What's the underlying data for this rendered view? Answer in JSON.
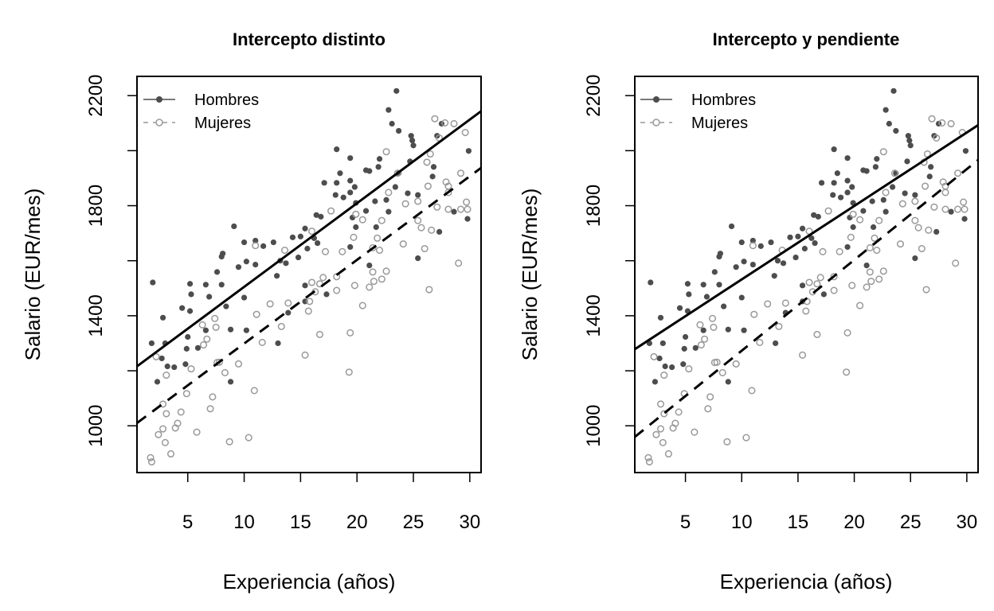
{
  "chart_data": [
    {
      "type": "scatter",
      "title": "Intercepto distinto",
      "xlabel": "Experiencia (años)",
      "ylabel": "Salario (EUR/mes)",
      "xlim": [
        0.5,
        31
      ],
      "ylim": [
        830,
        2270
      ],
      "xticks": [
        5,
        10,
        15,
        20,
        25,
        30
      ],
      "yticks": [
        1000,
        1200,
        1400,
        1600,
        1800,
        2000,
        2200
      ],
      "ytick_labels": [
        "1000",
        "",
        "1400",
        "",
        "1800",
        "",
        "2200"
      ],
      "grid": false,
      "legend": {
        "position": "top-left",
        "entries": [
          "Hombres",
          "Mujeres"
        ]
      },
      "fits": [
        {
          "series": "Hombres",
          "intercept": 1201,
          "slope": 30.4,
          "style": "solid"
        },
        {
          "series": "Mujeres",
          "intercept": 995,
          "slope": 30.4,
          "style": "dashed"
        }
      ]
    },
    {
      "type": "scatter",
      "title": "Intercepto y pendiente",
      "xlabel": "Experiencia (años)",
      "ylabel": "Salario (EUR/mes)",
      "xlim": [
        0.5,
        31
      ],
      "ylim": [
        830,
        2270
      ],
      "xticks": [
        5,
        10,
        15,
        20,
        25,
        30
      ],
      "yticks": [
        1000,
        1200,
        1400,
        1600,
        1800,
        2000,
        2200
      ],
      "ytick_labels": [
        "1000",
        "",
        "1400",
        "",
        "1800",
        "",
        "2200"
      ],
      "grid": false,
      "legend": {
        "position": "top-left",
        "entries": [
          "Hombres",
          "Mujeres"
        ]
      },
      "fits": [
        {
          "series": "Hombres",
          "intercept": 1265,
          "slope": 26.7,
          "style": "solid"
        },
        {
          "series": "Mujeres",
          "intercept": 943,
          "slope": 33.0,
          "style": "dashed"
        }
      ]
    }
  ],
  "series": [
    {
      "name": "Hombres",
      "marker": "filled-circle",
      "color": "#4d4d4d",
      "points": [
        [
          1.9,
          1521
        ],
        [
          2.8,
          1393
        ],
        [
          1.8,
          1300
        ],
        [
          3.0,
          1300
        ],
        [
          2.7,
          1245
        ],
        [
          2.3,
          1160
        ],
        [
          3.2,
          1216
        ],
        [
          3.8,
          1213
        ],
        [
          4.5,
          1428
        ],
        [
          5.2,
          1516
        ],
        [
          5.3,
          1478
        ],
        [
          5.2,
          1417
        ],
        [
          5.0,
          1323
        ],
        [
          4.9,
          1280
        ],
        [
          4.8,
          1224
        ],
        [
          5.9,
          1283
        ],
        [
          6.6,
          1513
        ],
        [
          6.9,
          1469
        ],
        [
          6.6,
          1347
        ],
        [
          7.6,
          1559
        ],
        [
          8.0,
          1615
        ],
        [
          8.1,
          1626
        ],
        [
          8.0,
          1513
        ],
        [
          8.4,
          1434
        ],
        [
          8.8,
          1350
        ],
        [
          8.8,
          1160
        ],
        [
          9.1,
          1725
        ],
        [
          9.5,
          1577
        ],
        [
          10.0,
          1667
        ],
        [
          10.2,
          1597
        ],
        [
          10.0,
          1466
        ],
        [
          10.2,
          1347
        ],
        [
          11.0,
          1673
        ],
        [
          11.0,
          1586
        ],
        [
          11.7,
          1653
        ],
        [
          12.6,
          1667
        ],
        [
          12.9,
          1545
        ],
        [
          13.0,
          1300
        ],
        [
          13.2,
          1600
        ],
        [
          13.7,
          1591
        ],
        [
          13.9,
          1411
        ],
        [
          14.3,
          1685
        ],
        [
          15.0,
          1688
        ],
        [
          14.8,
          1612
        ],
        [
          15.4,
          1717
        ],
        [
          15.4,
          1510
        ],
        [
          15.4,
          1452
        ],
        [
          15.6,
          1644
        ],
        [
          16.2,
          1682
        ],
        [
          16.5,
          1664
        ],
        [
          16.4,
          1766
        ],
        [
          16.8,
          1760
        ],
        [
          17.1,
          1883
        ],
        [
          17.3,
          1478
        ],
        [
          18.1,
          1839
        ],
        [
          18.2,
          1883
        ],
        [
          18.2,
          2005
        ],
        [
          18.5,
          1918
        ],
        [
          18.8,
          1830
        ],
        [
          19.4,
          1973
        ],
        [
          19.4,
          1891
        ],
        [
          19.4,
          1848
        ],
        [
          19.6,
          1757
        ],
        [
          19.8,
          1868
        ],
        [
          19.9,
          1810
        ],
        [
          19.9,
          1722
        ],
        [
          19.4,
          1650
        ],
        [
          20.8,
          1781
        ],
        [
          20.8,
          1929
        ],
        [
          21.1,
          1926
        ],
        [
          21.1,
          1583
        ],
        [
          21.6,
          1816
        ],
        [
          21.7,
          1722
        ],
        [
          21.9,
          1941
        ],
        [
          22.0,
          1970
        ],
        [
          22.6,
          1821
        ],
        [
          22.8,
          1778
        ],
        [
          22.8,
          2148
        ],
        [
          23.1,
          2098
        ],
        [
          23.4,
          1868
        ],
        [
          23.5,
          2217
        ],
        [
          23.7,
          2072
        ],
        [
          23.7,
          1918
        ],
        [
          24.5,
          1845
        ],
        [
          24.7,
          1961
        ],
        [
          24.8,
          2054
        ],
        [
          24.9,
          2037
        ],
        [
          25.0,
          2019
        ],
        [
          25.4,
          1839
        ],
        [
          25.4,
          1609
        ],
        [
          26.7,
          1906
        ],
        [
          26.8,
          1941
        ],
        [
          27.1,
          2054
        ],
        [
          27.5,
          2098
        ],
        [
          27.3,
          1705
        ],
        [
          28.6,
          1778
        ],
        [
          29.8,
          1752
        ],
        [
          29.9,
          1999
        ]
      ]
    },
    {
      "name": "Mujeres",
      "marker": "open-circle",
      "color": "#999999",
      "points": [
        [
          1.7,
          884
        ],
        [
          1.8,
          869
        ],
        [
          2.4,
          968
        ],
        [
          2.2,
          1251
        ],
        [
          2.8,
          1079
        ],
        [
          2.8,
          989
        ],
        [
          3.1,
          1044
        ],
        [
          3.0,
          939
        ],
        [
          3.5,
          898
        ],
        [
          3.1,
          1184
        ],
        [
          3.9,
          992
        ],
        [
          4.1,
          1009
        ],
        [
          4.4,
          1050
        ],
        [
          4.9,
          1117
        ],
        [
          5.3,
          1207
        ],
        [
          5.8,
          977
        ],
        [
          6.3,
          1367
        ],
        [
          6.4,
          1294
        ],
        [
          6.7,
          1315
        ],
        [
          7.0,
          1062
        ],
        [
          7.2,
          1105
        ],
        [
          7.4,
          1390
        ],
        [
          7.5,
          1358
        ],
        [
          7.6,
          1230
        ],
        [
          7.8,
          1231
        ],
        [
          8.3,
          1193
        ],
        [
          8.7,
          942
        ],
        [
          9.5,
          1225
        ],
        [
          10.4,
          957
        ],
        [
          10.9,
          1128
        ],
        [
          11.1,
          1405
        ],
        [
          11.0,
          1655
        ],
        [
          11.6,
          1303
        ],
        [
          12.3,
          1443
        ],
        [
          13.3,
          1361
        ],
        [
          13.6,
          1638
        ],
        [
          13.9,
          1446
        ],
        [
          15.4,
          1257
        ],
        [
          15.7,
          1417
        ],
        [
          15.8,
          1452
        ],
        [
          16.0,
          1707
        ],
        [
          16.0,
          1521
        ],
        [
          16.3,
          1487
        ],
        [
          16.7,
          1516
        ],
        [
          16.7,
          1332
        ],
        [
          17.0,
          1539
        ],
        [
          17.2,
          1633
        ],
        [
          17.7,
          1781
        ],
        [
          18.2,
          1542
        ],
        [
          18.2,
          1492
        ],
        [
          18.7,
          1633
        ],
        [
          19.3,
          1195
        ],
        [
          19.4,
          1338
        ],
        [
          19.7,
          1685
        ],
        [
          19.8,
          1510
        ],
        [
          19.9,
          1769
        ],
        [
          20.5,
          1749
        ],
        [
          20.5,
          1437
        ],
        [
          21.1,
          1504
        ],
        [
          21.4,
          1647
        ],
        [
          21.4,
          1559
        ],
        [
          21.5,
          1525
        ],
        [
          21.8,
          1682
        ],
        [
          22.0,
          1638
        ],
        [
          22.2,
          1533
        ],
        [
          22.2,
          1746
        ],
        [
          22.6,
          1562
        ],
        [
          22.6,
          1996
        ],
        [
          22.8,
          1848
        ],
        [
          23.6,
          1918
        ],
        [
          24.1,
          1661
        ],
        [
          24.3,
          1807
        ],
        [
          25.4,
          1816
        ],
        [
          25.4,
          1746
        ],
        [
          25.7,
          1720
        ],
        [
          26.0,
          1644
        ],
        [
          26.2,
          1958
        ],
        [
          26.3,
          1871
        ],
        [
          26.4,
          1495
        ],
        [
          26.5,
          1988
        ],
        [
          26.6,
          1711
        ],
        [
          26.9,
          2116
        ],
        [
          27.1,
          1795
        ],
        [
          27.3,
          2046
        ],
        [
          27.8,
          2101
        ],
        [
          27.9,
          1886
        ],
        [
          28.1,
          1787
        ],
        [
          28.1,
          1871
        ],
        [
          28.1,
          1848
        ],
        [
          28.6,
          2098
        ],
        [
          29.0,
          1591
        ],
        [
          29.2,
          1787
        ],
        [
          29.2,
          1918
        ],
        [
          29.6,
          2066
        ],
        [
          29.7,
          1813
        ],
        [
          29.8,
          1787
        ]
      ]
    }
  ]
}
